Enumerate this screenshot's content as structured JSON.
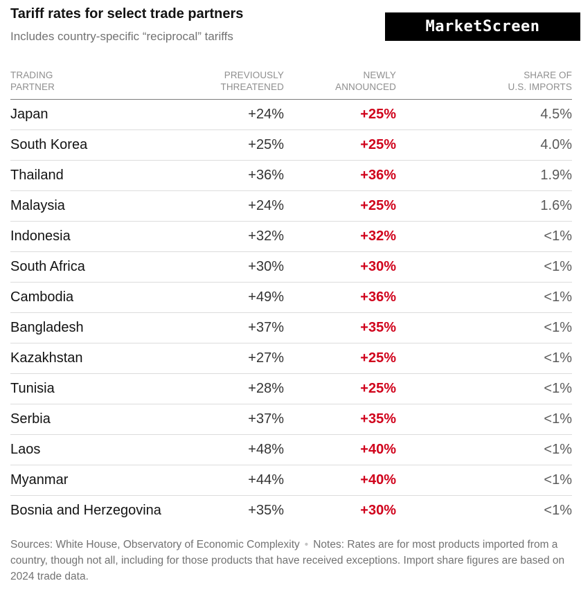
{
  "title": "Tariff rates for select trade partners",
  "subtitle": "Includes country-specific “reciprocal” tariffs",
  "logo": "MarketScreen",
  "chart_data": {
    "type": "table",
    "columns": [
      {
        "key": "partner",
        "label_lines": [
          "TRADING",
          "PARTNER"
        ]
      },
      {
        "key": "previously_threatened",
        "label_lines": [
          "PREVIOUSLY",
          "THREATENED"
        ]
      },
      {
        "key": "newly_announced",
        "label_lines": [
          "NEWLY",
          "ANNOUNCED"
        ]
      },
      {
        "key": "share_of_us_imports",
        "label_lines": [
          "SHARE OF",
          "U.S. IMPORTS"
        ]
      }
    ],
    "rows": [
      {
        "partner": "Japan",
        "prev": "+24%",
        "new": "+25%",
        "share": "4.5%"
      },
      {
        "partner": "South Korea",
        "prev": "+25%",
        "new": "+25%",
        "share": "4.0%"
      },
      {
        "partner": "Thailand",
        "prev": "+36%",
        "new": "+36%",
        "share": "1.9%"
      },
      {
        "partner": "Malaysia",
        "prev": "+24%",
        "new": "+25%",
        "share": "1.6%"
      },
      {
        "partner": "Indonesia",
        "prev": "+32%",
        "new": "+32%",
        "share": "<1%"
      },
      {
        "partner": "South Africa",
        "prev": "+30%",
        "new": "+30%",
        "share": "<1%"
      },
      {
        "partner": "Cambodia",
        "prev": "+49%",
        "new": "+36%",
        "share": "<1%"
      },
      {
        "partner": "Bangladesh",
        "prev": "+37%",
        "new": "+35%",
        "share": "<1%"
      },
      {
        "partner": "Kazakhstan",
        "prev": "+27%",
        "new": "+25%",
        "share": "<1%"
      },
      {
        "partner": "Tunisia",
        "prev": "+28%",
        "new": "+25%",
        "share": "<1%"
      },
      {
        "partner": "Serbia",
        "prev": "+37%",
        "new": "+35%",
        "share": "<1%"
      },
      {
        "partner": "Laos",
        "prev": "+48%",
        "new": "+40%",
        "share": "<1%"
      },
      {
        "partner": "Myanmar",
        "prev": "+44%",
        "new": "+40%",
        "share": "<1%"
      },
      {
        "partner": "Bosnia and Herzegovina",
        "prev": "+35%",
        "new": "+30%",
        "share": "<1%"
      }
    ]
  },
  "footer": {
    "sources": "Sources: White House, Observatory of Economic Complexity",
    "separator": "•",
    "notes": "Notes: Rates are for most products imported from a country, though not all, including for those products that have received exceptions. Import share figures are based on 2024 trade data."
  },
  "colors": {
    "newly_announced": "#d0021b",
    "logo_background": "#000000"
  }
}
